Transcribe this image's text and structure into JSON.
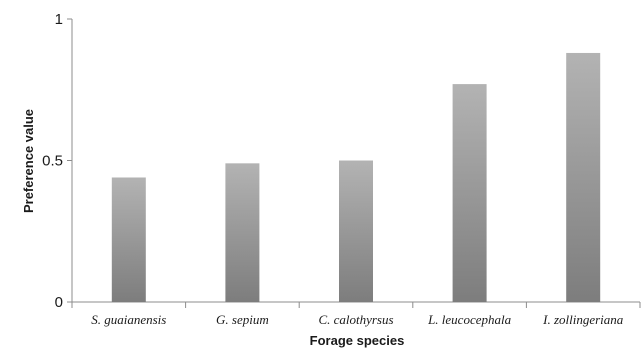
{
  "chart_data": {
    "type": "bar",
    "categories": [
      "S. guaianensis",
      "G. sepium",
      "C. calothyrsus",
      "L. leucocephala",
      "I. zollingeriana"
    ],
    "values": [
      0.44,
      0.49,
      0.5,
      0.77,
      0.88
    ],
    "title": "",
    "xlabel": "Forage species",
    "ylabel": "Preference value",
    "ylim": [
      0,
      1
    ],
    "yticks": [
      0,
      0.5,
      1
    ],
    "ytick_labels": [
      "0",
      "0.5",
      "1"
    ],
    "grid": false,
    "legend": "none",
    "bar_colors": {
      "top": "#b3b3b3",
      "bottom": "#7d7d7d"
    },
    "axis_color": "#8c8c8c"
  }
}
